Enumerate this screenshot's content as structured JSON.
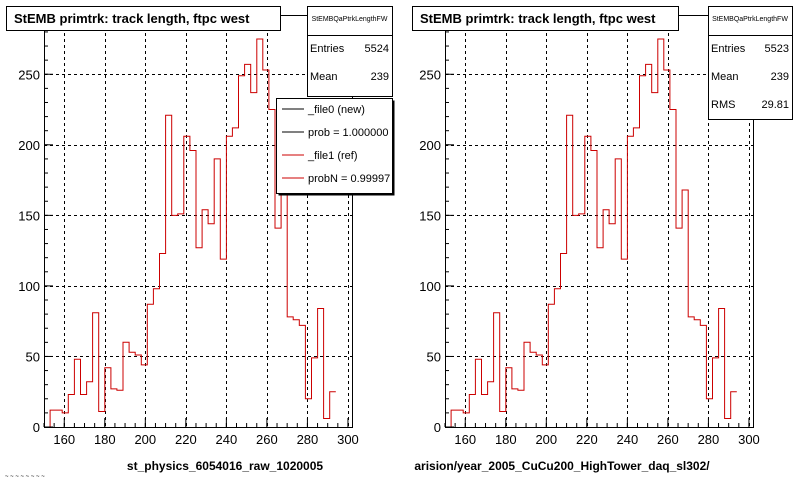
{
  "footer": {
    "corner_text": "~ ~ ~ ~ ~ ~ ~ ~"
  },
  "colors": {
    "hist_line": "#cc0000",
    "new_line": "#000000",
    "frame": "#000000",
    "background": "#ffffff"
  },
  "chart_data": [
    {
      "type": "line",
      "title": "StEMB primtrk: track length, ftpc west",
      "xlabel": "st_physics_6054016_raw_1020005",
      "ylabel": "",
      "xlim": [
        150,
        302
      ],
      "ylim": [
        0,
        292
      ],
      "x_ticks": [
        "160",
        "180",
        "200",
        "220",
        "240",
        "260",
        "280",
        "300"
      ],
      "y_ticks": [
        "0",
        "50",
        "100",
        "150",
        "200",
        "250"
      ],
      "grid": true,
      "stats_box": {
        "name": "StEMBQaPtrkLengthFW",
        "rows": [
          {
            "label": "Entries",
            "value": "5524"
          },
          {
            "label": "Mean",
            "value": "239"
          }
        ]
      },
      "legend": {
        "placement": "top-right",
        "entries": [
          {
            "label": "_file0 (new)",
            "color": "#000000"
          },
          {
            "label": "prob = 1.000000",
            "color": "#000000"
          },
          {
            "label": "_file1 (ref)",
            "color": "#cc0000"
          },
          {
            "label": "probN = 0.99997",
            "color": "#cc0000"
          }
        ]
      },
      "series": [
        {
          "bin_width": 3,
          "x_start": 150,
          "values": [
            0,
            12,
            12,
            10,
            23,
            48,
            23,
            32,
            81,
            11,
            42,
            27,
            26,
            60,
            53,
            51,
            44,
            87,
            98,
            123,
            221,
            150,
            151,
            206,
            196,
            127,
            154,
            144,
            190,
            119,
            206,
            212,
            249,
            257,
            237,
            275,
            253,
            225,
            141,
            168,
            78,
            76,
            72,
            20,
            49,
            84,
            6,
            25
          ]
        }
      ]
    },
    {
      "type": "line",
      "title": "StEMB primtrk: track length, ftpc west",
      "xlabel": "arision/year_2005_CuCu200_HighTower_daq_sl302/",
      "ylabel": "",
      "xlim": [
        150,
        302
      ],
      "ylim": [
        0,
        292
      ],
      "x_ticks": [
        "160",
        "180",
        "200",
        "220",
        "240",
        "260",
        "280",
        "300"
      ],
      "y_ticks": [
        "0",
        "50",
        "100",
        "150",
        "200",
        "250"
      ],
      "grid": true,
      "stats_box": {
        "name": "StEMBQaPtrkLengthFW",
        "rows": [
          {
            "label": "Entries",
            "value": "5523"
          },
          {
            "label": "Mean",
            "value": "239"
          },
          {
            "label": "RMS",
            "value": "29.81"
          }
        ]
      },
      "series": [
        {
          "bin_width": 3,
          "x_start": 150,
          "values": [
            0,
            12,
            12,
            10,
            23,
            48,
            23,
            32,
            81,
            11,
            42,
            27,
            26,
            60,
            53,
            51,
            44,
            87,
            98,
            123,
            221,
            150,
            151,
            206,
            196,
            127,
            154,
            144,
            190,
            119,
            206,
            212,
            249,
            257,
            237,
            275,
            253,
            225,
            141,
            168,
            78,
            76,
            72,
            20,
            49,
            84,
            6,
            25
          ]
        }
      ]
    }
  ]
}
